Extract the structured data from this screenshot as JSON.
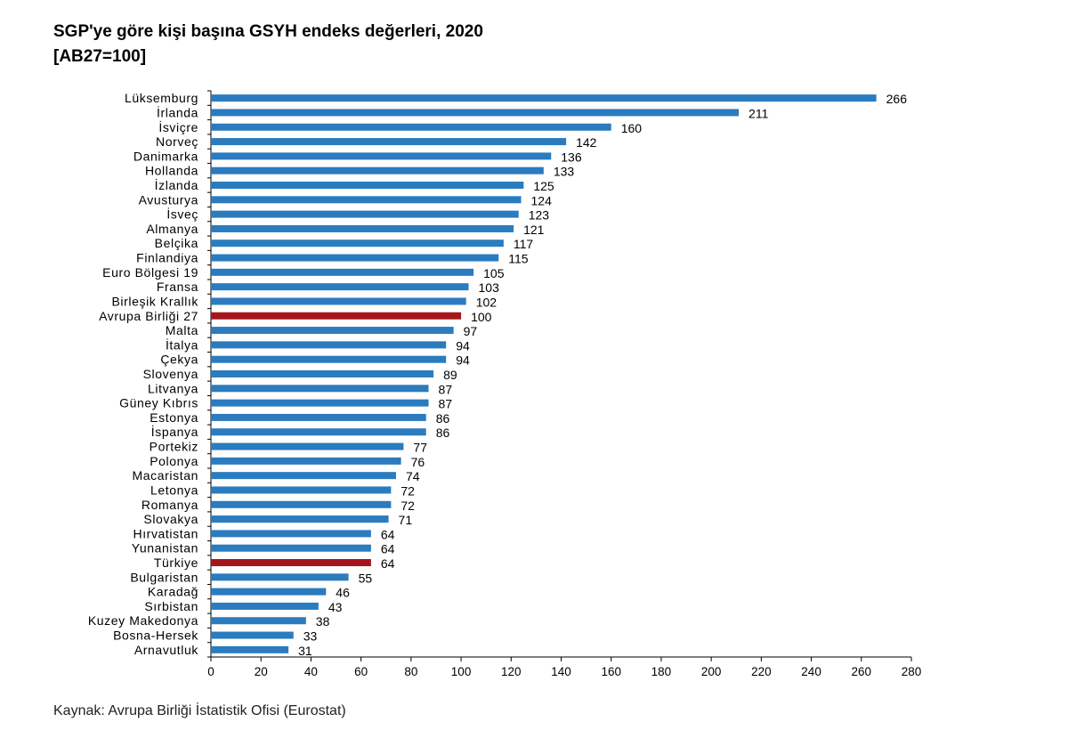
{
  "chart_data": {
    "type": "bar",
    "orientation": "horizontal",
    "title": "SGP'ye göre kişi başına GSYH endeks değerleri, 2020",
    "subtitle": "[AB27=100]",
    "categories": [
      "Lüksemburg",
      "İrlanda",
      "İsviçre",
      "Norveç",
      "Danimarka",
      "Hollanda",
      "İzlanda",
      "Avusturya",
      "İsveç",
      "Almanya",
      "Belçika",
      "Finlandiya",
      "Euro Bölgesi 19",
      "Fransa",
      "Birleşik Krallık",
      "Avrupa Birliği 27",
      "Malta",
      "İtalya",
      "Çekya",
      "Slovenya",
      "Litvanya",
      "Güney Kıbrıs",
      "Estonya",
      "İspanya",
      "Portekiz",
      "Polonya",
      "Macaristan",
      "Letonya",
      "Romanya",
      "Slovakya",
      "Hırvatistan",
      "Yunanistan",
      "Türkiye",
      "Bulgaristan",
      "Karadağ",
      "Sırbistan",
      "Kuzey Makedonya",
      "Bosna-Hersek",
      "Arnavutluk"
    ],
    "values": [
      266,
      211,
      160,
      142,
      136,
      133,
      125,
      124,
      123,
      121,
      117,
      115,
      105,
      103,
      102,
      100,
      97,
      94,
      94,
      89,
      87,
      87,
      86,
      86,
      77,
      76,
      74,
      72,
      72,
      71,
      64,
      64,
      64,
      55,
      46,
      43,
      38,
      33,
      31
    ],
    "highlighted": [
      "Avrupa Birliği 27",
      "Türkiye"
    ],
    "xlim": [
      0,
      280
    ],
    "xticks": [
      0,
      20,
      40,
      60,
      80,
      100,
      120,
      140,
      160,
      180,
      200,
      220,
      240,
      260,
      280
    ],
    "grid": false,
    "legend": "none",
    "colors": {
      "bar": "#2b7bbf",
      "highlight": "#a5161c",
      "axis": "#000000"
    }
  },
  "source": "Kaynak: Avrupa Birliği İstatistik Ofisi (Eurostat)"
}
